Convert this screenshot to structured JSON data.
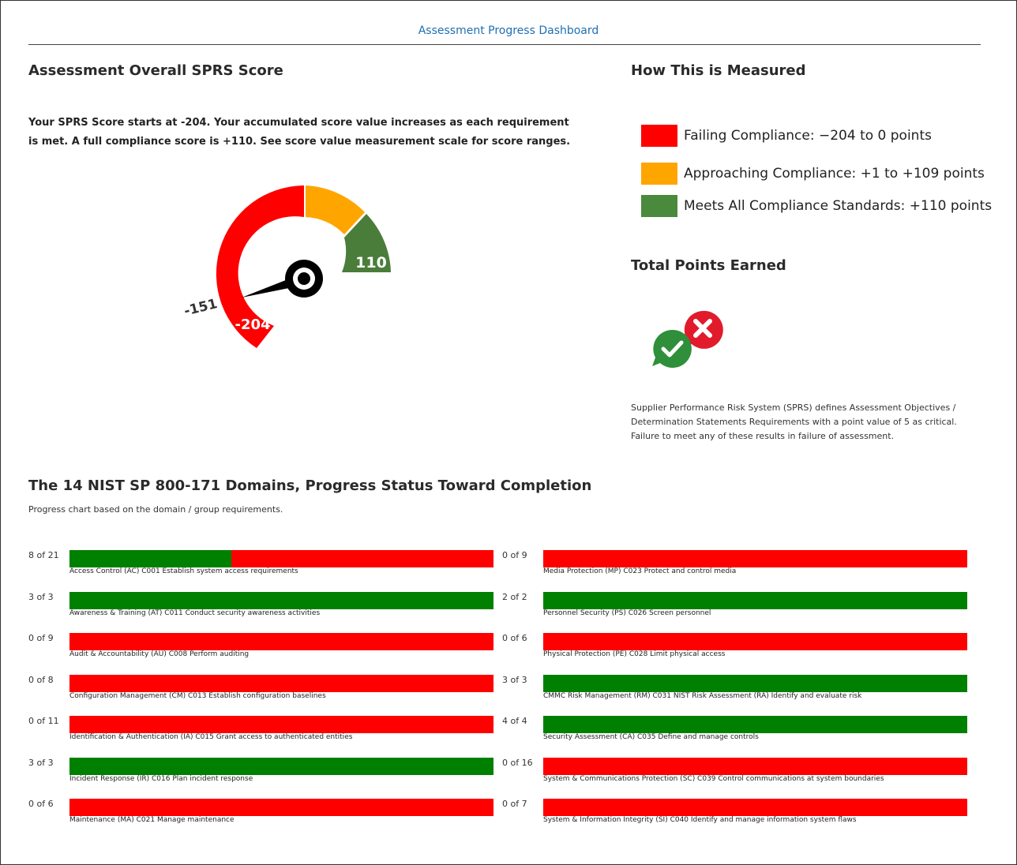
{
  "header": {
    "title": "Assessment Progress Dashboard"
  },
  "score_section": {
    "heading": "Assessment Overall SPRS Score",
    "intro": "Your SPRS Score starts at -204. Your accumulated score value increases as each requirement is met. A full compliance score is +110. See score value measurement scale for score ranges.",
    "gauge": {
      "current_value": -151,
      "current_label": "-151",
      "min_label": "-204",
      "max_label": "110",
      "min": -204,
      "max": 110,
      "bands": [
        {
          "name": "failing",
          "from": -204,
          "to": 0,
          "color": "#ff0000"
        },
        {
          "name": "approaching",
          "from": 1,
          "to": 109,
          "color": "#ffa500"
        },
        {
          "name": "meets",
          "from": 110,
          "to": 110,
          "color": "#4a7d3a"
        }
      ]
    }
  },
  "measure_section": {
    "heading": "How This is Measured",
    "legend": [
      {
        "label": "Failing Compliance: −204 to 0 points",
        "color": "#ff0000"
      },
      {
        "label": "Approaching Compliance: +1 to +109 points",
        "color": "#ffa500"
      },
      {
        "label": "Meets All Compliance Standards: +110 points",
        "color": "#4a8a3c"
      }
    ]
  },
  "points_section": {
    "heading": "Total Points Earned",
    "icon": "check-and-x-chat-bubbles-icon",
    "note": "Supplier Performance Risk System (SPRS) defines Assessment Objectives / Determination Statements Requirements with a point value of 5 as critical. Failure to meet any of these results in failure of assessment."
  },
  "domains_section": {
    "heading": "The 14 NIST SP 800-171 Domains, Progress Status Toward Completion",
    "subtitle": "Progress chart based on the domain / group requirements.",
    "colors": {
      "complete": "#008000",
      "incomplete": "#ff0000"
    },
    "left": [
      {
        "count": "8 of 21",
        "done": 8,
        "total": 21,
        "label": "Access Control (AC) C001 Establish system access requirements"
      },
      {
        "count": "3 of 3",
        "done": 3,
        "total": 3,
        "label": "Awareness & Training (AT) C011 Conduct security awareness activities"
      },
      {
        "count": "0 of 9",
        "done": 0,
        "total": 9,
        "label": "Audit & Accountability (AU) C008 Perform auditing"
      },
      {
        "count": "0 of 8",
        "done": 0,
        "total": 8,
        "label": "Configuration Management (CM) C013 Establish configuration baselines"
      },
      {
        "count": "0 of 11",
        "done": 0,
        "total": 11,
        "label": "Identification & Authentication (IA) C015 Grant access to authenticated entities"
      },
      {
        "count": "3 of 3",
        "done": 3,
        "total": 3,
        "label": "Incident Response (IR) C016 Plan incident response"
      },
      {
        "count": "0 of 6",
        "done": 0,
        "total": 6,
        "label": "Maintenance (MA) C021 Manage maintenance"
      }
    ],
    "right": [
      {
        "count": "0 of 9",
        "done": 0,
        "total": 9,
        "label": "Media Protection (MP) C023 Protect and control media"
      },
      {
        "count": "2 of 2",
        "done": 2,
        "total": 2,
        "label": "Personnel Security (PS) C026 Screen personnel"
      },
      {
        "count": "0 of 6",
        "done": 0,
        "total": 6,
        "label": "Physical Protection (PE) C028 Limit physical access"
      },
      {
        "count": "3 of 3",
        "done": 3,
        "total": 3,
        "label": "CMMC Risk Management (RM) C031 NIST Risk Assessment (RA) Identify and evaluate risk"
      },
      {
        "count": "4 of 4",
        "done": 4,
        "total": 4,
        "label": "Security Assessment (CA) C035 Define and manage controls"
      },
      {
        "count": "0 of 16",
        "done": 0,
        "total": 16,
        "label": "System & Communications Protection (SC) C039 Control communications at system boundaries"
      },
      {
        "count": "0 of 7",
        "done": 0,
        "total": 7,
        "label": "System & Information Integrity (SI) C040 Identify and manage information system flaws"
      }
    ]
  }
}
